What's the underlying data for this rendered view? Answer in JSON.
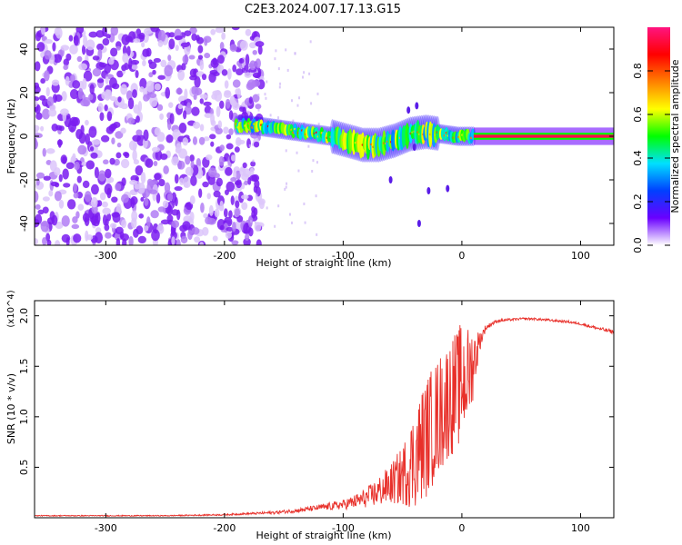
{
  "title": "C2E3.2024.007.17.13.G15",
  "chart_data": [
    {
      "type": "heatmap",
      "xlabel": "Height of straight line (km)",
      "ylabel": "Frequency (Hz)",
      "xlim": [
        -360,
        128
      ],
      "ylim": [
        -50,
        50
      ],
      "xticks": [
        -300,
        -200,
        -100,
        0,
        100
      ],
      "yticks": [
        -40,
        -20,
        0,
        20,
        40
      ],
      "colorbar": {
        "label": "Normalized spectral amplitude",
        "range": [
          0.0,
          1.0
        ],
        "ticks": [
          0.0,
          0.2,
          0.4,
          0.6,
          0.8
        ],
        "tick_labels": [
          "0.0",
          "0.2",
          "0.4",
          "0.6",
          "0.8"
        ],
        "colormap": [
          "#ffffff",
          "#6a00ff",
          "#0040ff",
          "#00e0ff",
          "#00ff00",
          "#ffff00",
          "#ff8000",
          "#ff0000",
          "#ff1480"
        ]
      },
      "regions": [
        {
          "name": "noise",
          "x": [
            -360,
            -180
          ],
          "f_range": [
            -50,
            50
          ],
          "amplitude": 0.05
        },
        {
          "name": "signal-band",
          "x": [
            -190,
            10
          ],
          "center_hz": [
            5,
            5,
            4,
            3,
            2,
            1,
            0,
            -2,
            -4,
            -4,
            -2,
            1,
            2,
            1,
            0,
            0
          ],
          "amplitude": 0.6
        },
        {
          "name": "steady-line",
          "x": [
            10,
            128
          ],
          "center_hz": 0,
          "amplitude": 0.95
        }
      ]
    },
    {
      "type": "line",
      "xlabel": "Height of straight line (km)",
      "ylabel": "SNR (10 * v/v)",
      "y_multiplier": "(x10^4)",
      "xlim": [
        -360,
        128
      ],
      "ylim": [
        0,
        2.15
      ],
      "xticks": [
        -300,
        -200,
        -100,
        0,
        100
      ],
      "yticks": [
        0.5,
        1.0,
        1.5,
        2.0
      ],
      "ytick_labels": [
        "0.5",
        "1.0",
        "1.5",
        "2.0"
      ],
      "color": "#e8302a",
      "series": [
        {
          "x": [
            -360,
            -300,
            -250,
            -200,
            -180,
            -160,
            -140,
            -120,
            -100,
            -90,
            -80,
            -70,
            -60,
            -50,
            -45,
            -40,
            -35,
            -30,
            -25,
            -20,
            -15,
            -10,
            -5,
            0,
            5,
            10,
            15,
            20,
            25,
            30,
            40,
            50,
            60,
            70,
            80,
            90,
            100,
            110,
            120,
            128
          ],
          "y": [
            0.02,
            0.02,
            0.02,
            0.03,
            0.04,
            0.05,
            0.07,
            0.1,
            0.13,
            0.16,
            0.2,
            0.26,
            0.33,
            0.42,
            0.5,
            0.58,
            0.7,
            0.8,
            0.9,
            1.0,
            1.1,
            1.2,
            1.25,
            1.35,
            1.4,
            1.55,
            1.75,
            1.88,
            1.92,
            1.95,
            1.96,
            1.97,
            1.97,
            1.96,
            1.95,
            1.94,
            1.92,
            1.89,
            1.86,
            1.84
          ],
          "noise_amplitude": [
            0.005,
            0.005,
            0.005,
            0.008,
            0.01,
            0.015,
            0.02,
            0.03,
            0.05,
            0.07,
            0.1,
            0.15,
            0.2,
            0.3,
            0.4,
            0.5,
            0.55,
            0.6,
            0.6,
            0.6,
            0.6,
            0.6,
            0.6,
            0.6,
            0.5,
            0.35,
            0.1,
            0.03,
            0.02,
            0.015,
            0.012,
            0.012,
            0.012,
            0.012,
            0.012,
            0.012,
            0.012,
            0.015,
            0.02,
            0.02
          ]
        }
      ]
    }
  ]
}
